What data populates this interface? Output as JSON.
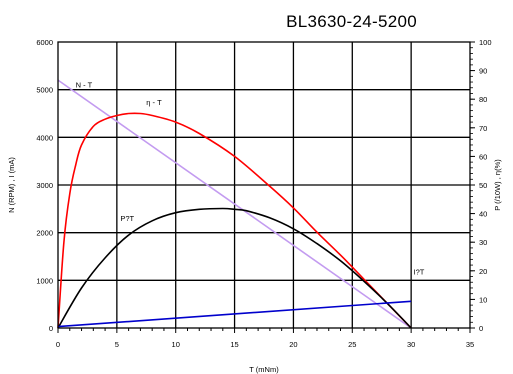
{
  "chart_data": {
    "type": "line",
    "title": "BL3630-24-5200",
    "xlabel": "T (mNm)",
    "ylabel_left": "N (RPM) ,    I (mA)",
    "ylabel_right": "P (/10W) ,    η(%)",
    "xlim": [
      0,
      35
    ],
    "ylim_left": [
      0,
      6000
    ],
    "ylim_right": [
      0,
      100
    ],
    "x_ticks": [
      0,
      5,
      10,
      15,
      20,
      25,
      30,
      35
    ],
    "y_left_ticks": [
      0,
      1000,
      2000,
      3000,
      4000,
      5000,
      6000
    ],
    "y_right_ticks": [
      0,
      10,
      20,
      30,
      40,
      50,
      60,
      70,
      80,
      90,
      100
    ],
    "grid": true,
    "series": [
      {
        "name": "N - T",
        "axis": "left",
        "color": "#c39bf0",
        "label_at": [
          1.5,
          5050
        ],
        "points": [
          [
            0,
            5200
          ],
          [
            30,
            0
          ]
        ]
      },
      {
        "name": "η - T",
        "axis": "right",
        "color": "#ff0000",
        "label_at": [
          7.5,
          78
        ],
        "points": [
          [
            0,
            0
          ],
          [
            0.5,
            30
          ],
          [
            1,
            47
          ],
          [
            1.5,
            57
          ],
          [
            2,
            64
          ],
          [
            3,
            70.5
          ],
          [
            4,
            73
          ],
          [
            5,
            74.3
          ],
          [
            6,
            75
          ],
          [
            7,
            75
          ],
          [
            8,
            74.3
          ],
          [
            10,
            72
          ],
          [
            12,
            68
          ],
          [
            15,
            60
          ],
          [
            18,
            49.5
          ],
          [
            20,
            42
          ],
          [
            22,
            33.5
          ],
          [
            24,
            25.5
          ],
          [
            26,
            17
          ],
          [
            28,
            8.5
          ],
          [
            30,
            0
          ]
        ]
      },
      {
        "name": "P?T",
        "axis": "right",
        "color": "#000000",
        "label_at": [
          5.3,
          37.5
        ],
        "points": [
          [
            0,
            0
          ],
          [
            2,
            14
          ],
          [
            4,
            24.5
          ],
          [
            6,
            32.5
          ],
          [
            8,
            37.5
          ],
          [
            10,
            40.3
          ],
          [
            12,
            41.5
          ],
          [
            14,
            41.8
          ],
          [
            15,
            41.5
          ],
          [
            16,
            41
          ],
          [
            18,
            38.5
          ],
          [
            20,
            34.7
          ],
          [
            22,
            29.5
          ],
          [
            24,
            23.5
          ],
          [
            26,
            16.3
          ],
          [
            28,
            8.5
          ],
          [
            30,
            0
          ]
        ]
      },
      {
        "name": "I?T",
        "axis": "left",
        "color": "#0000cc",
        "label_at": [
          30.2,
          1120
        ],
        "points": [
          [
            0,
            30
          ],
          [
            30,
            560
          ]
        ]
      }
    ]
  }
}
